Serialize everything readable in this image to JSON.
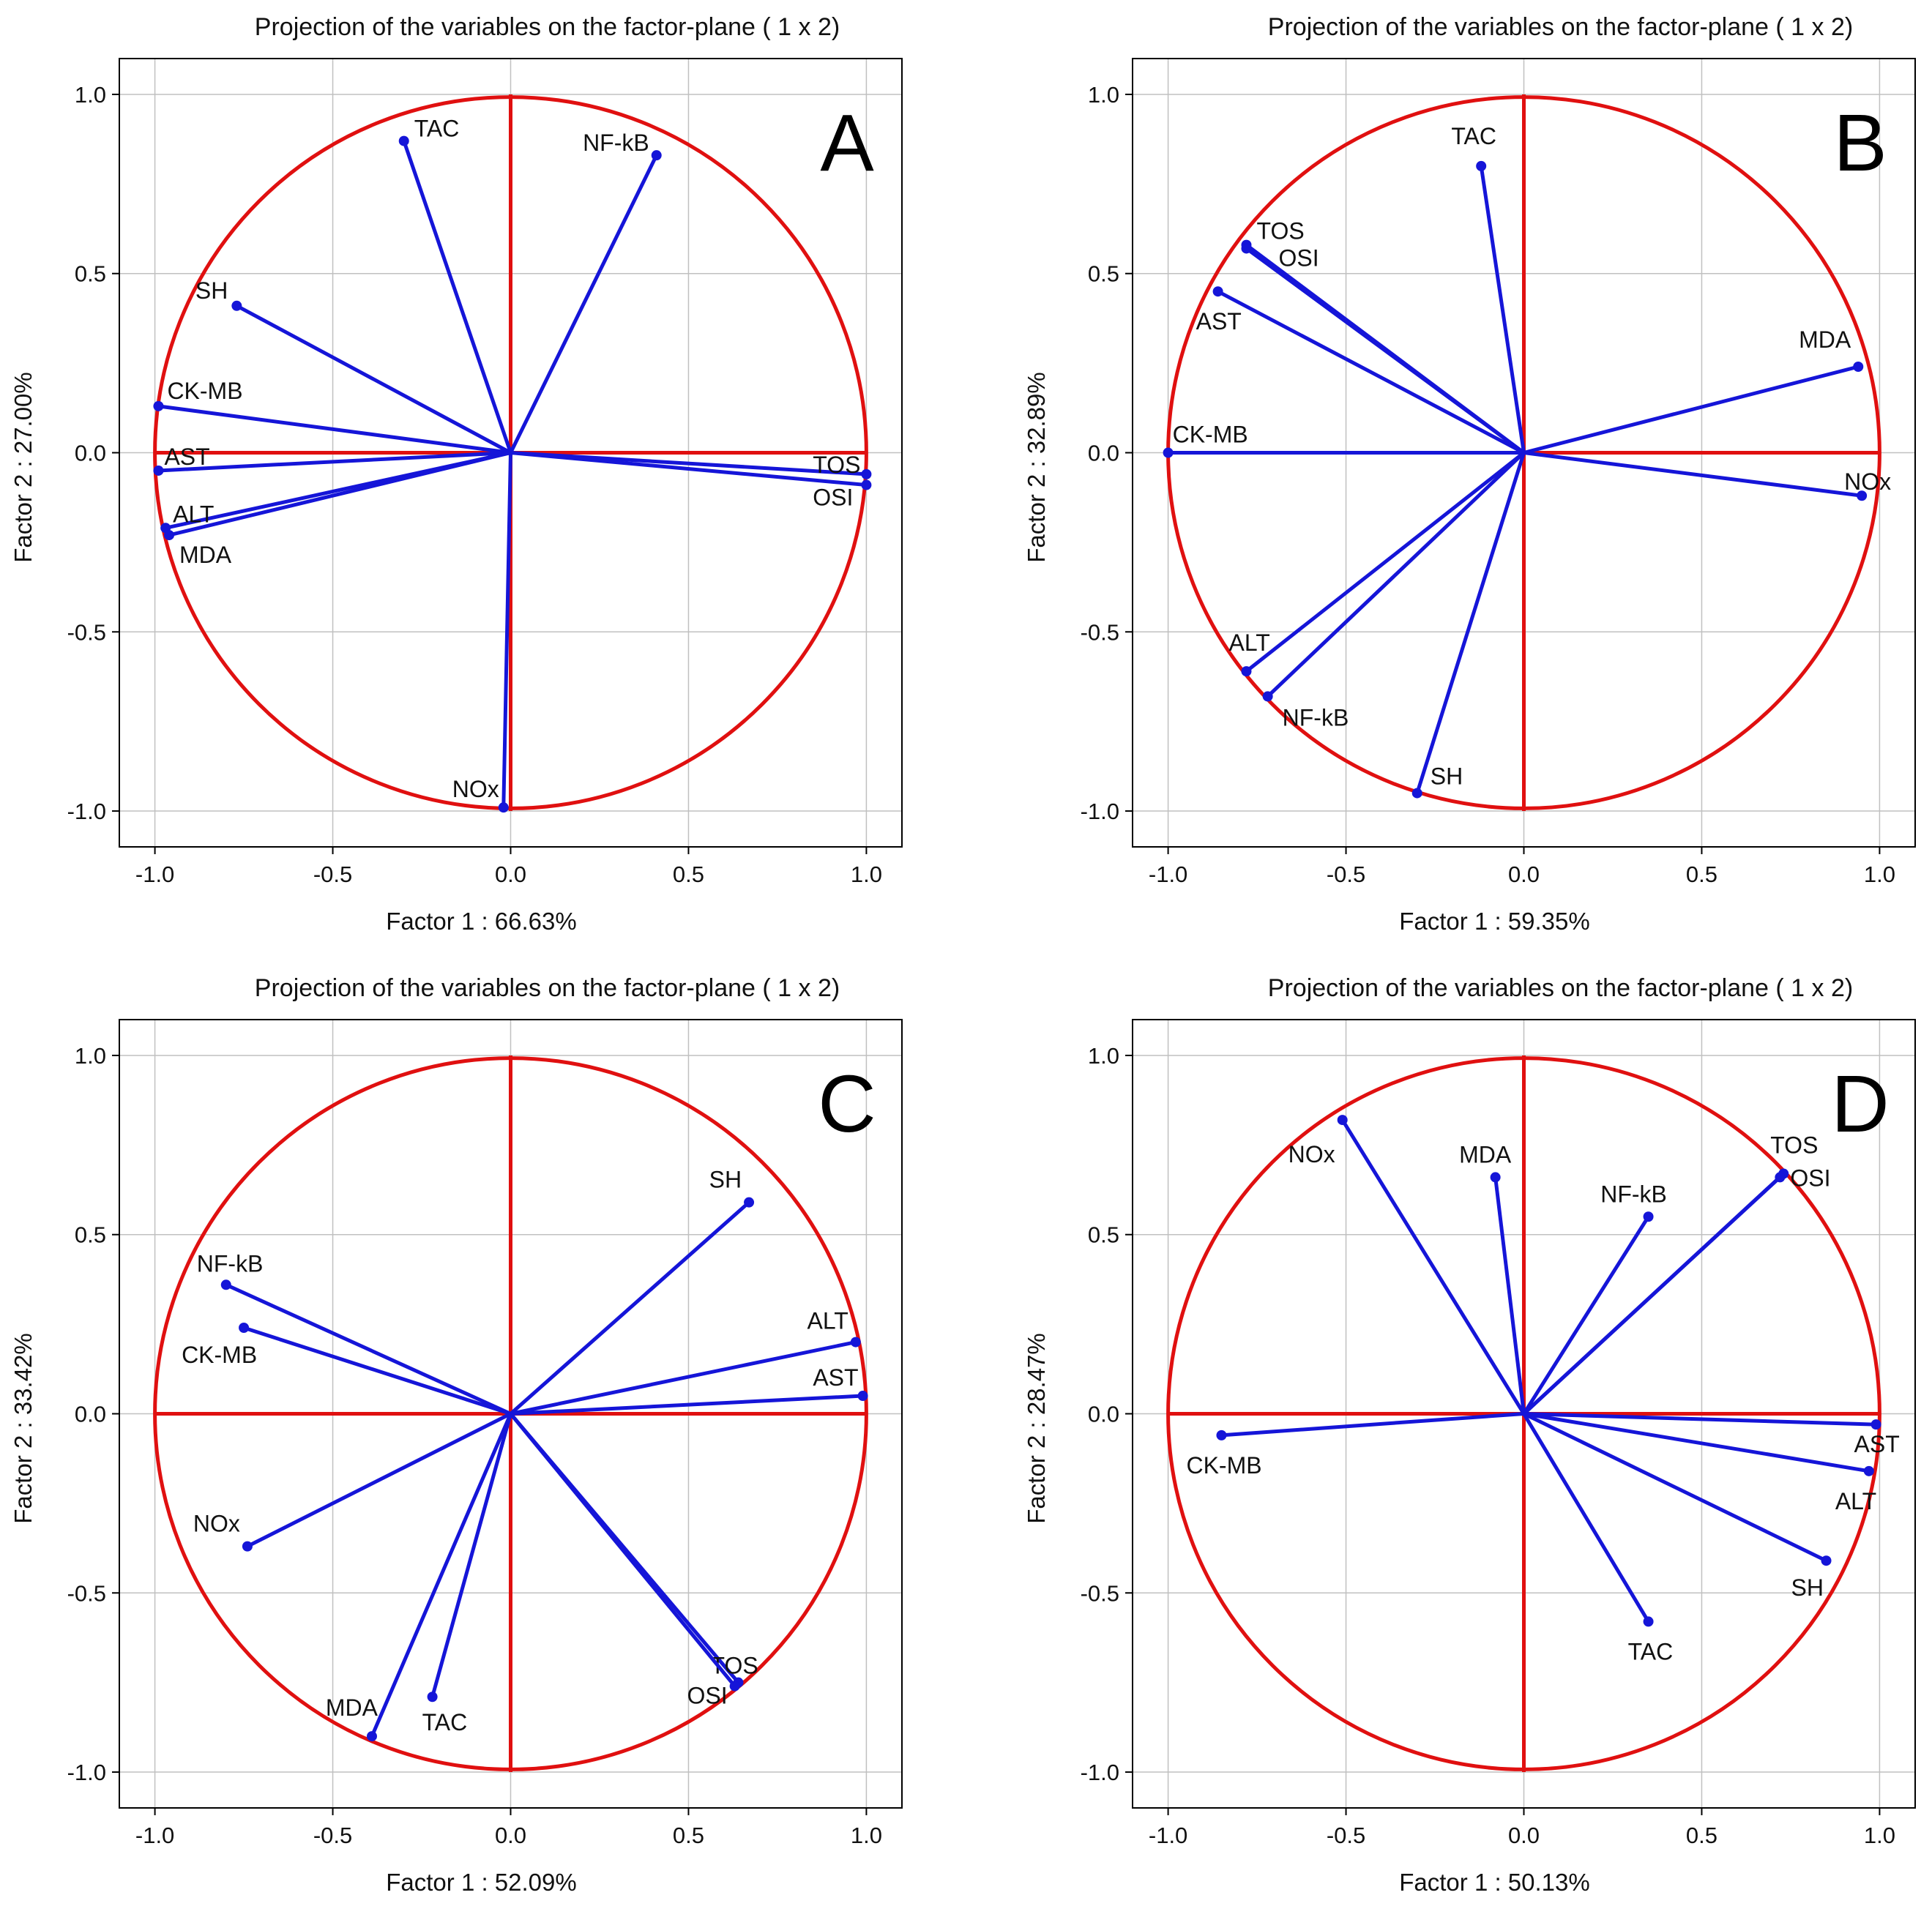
{
  "chart_data": [
    {
      "type": "scatter",
      "panel": "A",
      "title": "Projection of the variables on the factor-plane (  1 x  2)",
      "xlabel": "Factor 1 : 66.63%",
      "ylabel": "Factor 2 : 27.00%",
      "xlim": [
        -1.1,
        1.1
      ],
      "ylim": [
        -1.1,
        1.1
      ],
      "xticks": [
        "-1.0",
        "-0.5",
        "0.0",
        "0.5",
        "1.0"
      ],
      "yticks": [
        "1.0",
        "0.5",
        "0.0",
        "-0.5",
        "-1.0"
      ],
      "grid": true,
      "points": [
        {
          "label": "TAC",
          "x": -0.3,
          "y": 0.87
        },
        {
          "label": "NF-kB",
          "x": 0.41,
          "y": 0.83
        },
        {
          "label": "SH",
          "x": -0.77,
          "y": 0.41
        },
        {
          "label": "CK-MB",
          "x": -0.99,
          "y": 0.13
        },
        {
          "label": "AST",
          "x": -0.99,
          "y": -0.05
        },
        {
          "label": "TOS",
          "x": 1.0,
          "y": -0.06
        },
        {
          "label": "OSI",
          "x": 1.0,
          "y": -0.09
        },
        {
          "label": "ALT",
          "x": -0.97,
          "y": -0.21
        },
        {
          "label": "MDA",
          "x": -0.96,
          "y": -0.23
        },
        {
          "label": "NOx",
          "x": -0.02,
          "y": -0.99
        }
      ]
    },
    {
      "type": "scatter",
      "panel": "B",
      "title": "Projection of the variables on the factor-plane (  1 x  2)",
      "xlabel": "Factor 1 : 59.35%",
      "ylabel": "Factor 2 : 32.89%",
      "xlim": [
        -1.1,
        1.1
      ],
      "ylim": [
        -1.1,
        1.1
      ],
      "xticks": [
        "-1.0",
        "-0.5",
        "0.0",
        "0.5",
        "1.0"
      ],
      "yticks": [
        "1.0",
        "0.5",
        "0.0",
        "-0.5",
        "-1.0"
      ],
      "grid": true,
      "points": [
        {
          "label": "TAC",
          "x": -0.12,
          "y": 0.8
        },
        {
          "label": "TOS",
          "x": -0.78,
          "y": 0.58
        },
        {
          "label": "OSI",
          "x": -0.78,
          "y": 0.57
        },
        {
          "label": "AST",
          "x": -0.86,
          "y": 0.45
        },
        {
          "label": "MDA",
          "x": 0.94,
          "y": 0.24
        },
        {
          "label": "CK-MB",
          "x": -1.0,
          "y": 0.0
        },
        {
          "label": "NOx",
          "x": 0.95,
          "y": -0.12
        },
        {
          "label": "ALT",
          "x": -0.78,
          "y": -0.61
        },
        {
          "label": "NF-kB",
          "x": -0.72,
          "y": -0.68
        },
        {
          "label": "SH",
          "x": -0.3,
          "y": -0.95
        }
      ]
    },
    {
      "type": "scatter",
      "panel": "C",
      "title": "Projection of the variables on the factor-plane (  1 x  2)",
      "xlabel": "Factor 1 : 52.09%",
      "ylabel": "Factor 2 : 33.42%",
      "xlim": [
        -1.1,
        1.1
      ],
      "ylim": [
        -1.1,
        1.1
      ],
      "xticks": [
        "-1.0",
        "-0.5",
        "0.0",
        "0.5",
        "1.0"
      ],
      "yticks": [
        "1.0",
        "0.5",
        "0.0",
        "-0.5",
        "-1.0"
      ],
      "grid": true,
      "points": [
        {
          "label": "SH",
          "x": 0.67,
          "y": 0.59
        },
        {
          "label": "NF-kB",
          "x": -0.8,
          "y": 0.36
        },
        {
          "label": "CK-MB",
          "x": -0.75,
          "y": 0.24
        },
        {
          "label": "ALT",
          "x": 0.97,
          "y": 0.2
        },
        {
          "label": "AST",
          "x": 0.99,
          "y": 0.05
        },
        {
          "label": "NOx",
          "x": -0.74,
          "y": -0.37
        },
        {
          "label": "TOS",
          "x": 0.64,
          "y": -0.75
        },
        {
          "label": "OSI",
          "x": 0.63,
          "y": -0.76
        },
        {
          "label": "TAC",
          "x": -0.22,
          "y": -0.79
        },
        {
          "label": "MDA",
          "x": -0.39,
          "y": -0.9
        }
      ]
    },
    {
      "type": "scatter",
      "panel": "D",
      "title": "Projection of the variables on the factor-plane (  1 x  2)",
      "xlabel": "Factor 1 : 50.13%",
      "ylabel": "Factor 2 : 28.47%",
      "xlim": [
        -1.1,
        1.1
      ],
      "ylim": [
        -1.1,
        1.1
      ],
      "xticks": [
        "-1.0",
        "-0.5",
        "0.0",
        "0.5",
        "1.0"
      ],
      "yticks": [
        "1.0",
        "0.5",
        "0.0",
        "-0.5",
        "-1.0"
      ],
      "grid": true,
      "points": [
        {
          "label": "NOx",
          "x": -0.51,
          "y": 0.82
        },
        {
          "label": "MDA",
          "x": -0.08,
          "y": 0.66
        },
        {
          "label": "NF-kB",
          "x": 0.35,
          "y": 0.55
        },
        {
          "label": "TOS",
          "x": 0.73,
          "y": 0.67
        },
        {
          "label": "OSI",
          "x": 0.72,
          "y": 0.66
        },
        {
          "label": "AST",
          "x": 0.99,
          "y": -0.03
        },
        {
          "label": "CK-MB",
          "x": -0.85,
          "y": -0.06
        },
        {
          "label": "ALT",
          "x": 0.97,
          "y": -0.16
        },
        {
          "label": "SH",
          "x": 0.85,
          "y": -0.41
        },
        {
          "label": "TAC",
          "x": 0.35,
          "y": -0.58
        }
      ]
    }
  ]
}
